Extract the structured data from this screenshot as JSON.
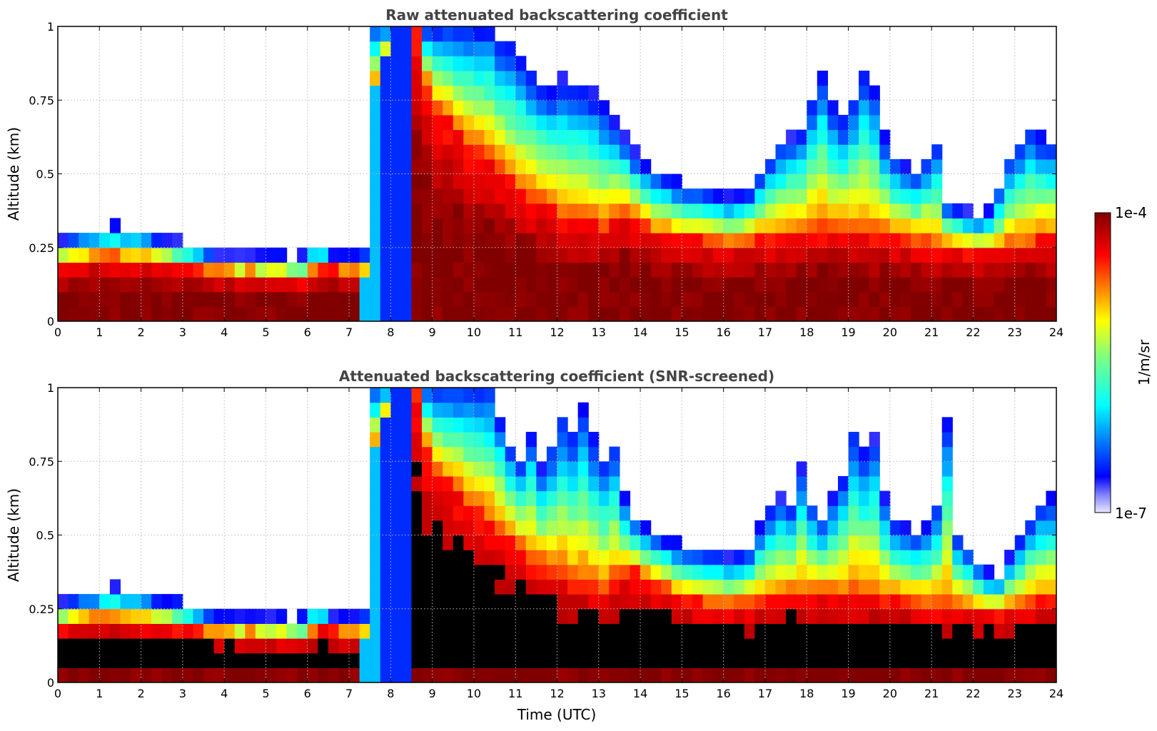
{
  "chart_data": {
    "type": "heatmap",
    "colormap": "jet",
    "colorbar": {
      "label": "1/m/sr",
      "min_label": "1e-7",
      "max_label": "1e-4",
      "vmin": 1e-07,
      "vmax": 0.0001,
      "scale": "log",
      "placement": "right"
    },
    "grid": true,
    "panels": [
      {
        "title": "Raw attenuated backscattering coefficient",
        "xlabel": "",
        "ylabel": "Altitude (km)",
        "xlim": [
          0,
          24
        ],
        "ylim": [
          0,
          1
        ],
        "xticks": [
          "0",
          "1",
          "2",
          "3",
          "4",
          "5",
          "6",
          "7",
          "8",
          "9",
          "10",
          "11",
          "12",
          "13",
          "14",
          "15",
          "16",
          "17",
          "18",
          "19",
          "20",
          "21",
          "22",
          "23",
          "24"
        ],
        "yticks": [
          "0",
          "0.25",
          "0.5",
          "0.75",
          "1"
        ],
        "x_step_hours": 0.25,
        "y_step_km": 0.05,
        "boundary_layer_top_km": [
          0.27,
          0.28,
          0.29,
          0.29,
          0.3,
          0.31,
          0.3,
          0.3,
          0.29,
          0.28,
          0.27,
          0.26,
          0.25,
          0.24,
          0.23,
          0.22,
          0.21,
          0.21,
          0.22,
          0.21,
          0.21,
          0.21,
          0.2,
          0.21,
          0.25,
          0.24,
          0.22,
          0.22,
          0.22,
          0.23,
          1.0,
          1.0,
          1.0,
          1.0,
          1.0,
          1.0,
          1.0,
          1.0,
          1.0,
          1.0,
          1.0,
          1.0,
          0.95,
          0.92,
          0.88,
          0.84,
          0.8,
          0.78,
          0.82,
          0.8,
          0.78,
          0.76,
          0.72,
          0.68,
          0.62,
          0.56,
          0.52,
          0.5,
          0.48,
          0.46,
          0.45,
          0.44,
          0.44,
          0.43,
          0.42,
          0.42,
          0.44,
          0.5,
          0.55,
          0.6,
          0.62,
          0.65,
          0.75,
          0.85,
          0.72,
          0.68,
          0.75,
          0.85,
          0.78,
          0.62,
          0.55,
          0.52,
          0.5,
          0.55,
          0.6,
          0.4,
          0.38,
          0.36,
          0.35,
          0.36,
          0.45,
          0.55,
          0.6,
          0.65,
          0.62,
          0.6
        ],
        "core_top_km": [
          0.2,
          0.21,
          0.21,
          0.22,
          0.22,
          0.22,
          0.21,
          0.21,
          0.21,
          0.2,
          0.2,
          0.19,
          0.19,
          0.18,
          0.17,
          0.17,
          0.17,
          0.16,
          0.17,
          0.16,
          0.16,
          0.16,
          0.16,
          0.15,
          0.17,
          0.19,
          0.18,
          0.17,
          0.17,
          0.16,
          0.8,
          0.9,
          1.0,
          1.0,
          1.0,
          0.8,
          0.72,
          0.68,
          0.65,
          0.6,
          0.58,
          0.55,
          0.52,
          0.48,
          0.45,
          0.42,
          0.4,
          0.38,
          0.36,
          0.34,
          0.34,
          0.33,
          0.32,
          0.35,
          0.37,
          0.35,
          0.33,
          0.3,
          0.3,
          0.29,
          0.28,
          0.28,
          0.27,
          0.27,
          0.26,
          0.27,
          0.27,
          0.28,
          0.28,
          0.29,
          0.3,
          0.3,
          0.3,
          0.31,
          0.3,
          0.3,
          0.3,
          0.3,
          0.29,
          0.29,
          0.28,
          0.28,
          0.27,
          0.27,
          0.26,
          0.25,
          0.25,
          0.25,
          0.24,
          0.24,
          0.24,
          0.25,
          0.26,
          0.27,
          0.28,
          0.28
        ]
      },
      {
        "title": "Attenuated backscattering coefficient (SNR-screened)",
        "xlabel": "Time (UTC)",
        "ylabel": "Altitude (km)",
        "xlim": [
          0,
          24
        ],
        "ylim": [
          0,
          1
        ],
        "xticks": [
          "0",
          "1",
          "2",
          "3",
          "4",
          "5",
          "6",
          "7",
          "8",
          "9",
          "10",
          "11",
          "12",
          "13",
          "14",
          "15",
          "16",
          "17",
          "18",
          "19",
          "20",
          "21",
          "22",
          "23",
          "24"
        ],
        "yticks": [
          "0",
          "0.25",
          "0.5",
          "0.75",
          "1"
        ],
        "x_step_hours": 0.25,
        "y_step_km": 0.05,
        "boundary_layer_top_km": [
          0.27,
          0.28,
          0.29,
          0.29,
          0.3,
          0.31,
          0.3,
          0.3,
          0.29,
          0.28,
          0.27,
          0.26,
          0.25,
          0.24,
          0.23,
          0.22,
          0.21,
          0.21,
          0.22,
          0.21,
          0.21,
          0.21,
          0.2,
          0.21,
          0.25,
          0.24,
          0.22,
          0.22,
          0.22,
          0.23,
          1.0,
          1.0,
          1.0,
          1.0,
          1.0,
          1.0,
          1.0,
          1.0,
          1.0,
          1.0,
          1.0,
          1.0,
          0.9,
          0.8,
          0.75,
          0.85,
          0.72,
          0.8,
          0.9,
          0.85,
          0.92,
          0.82,
          0.75,
          0.8,
          0.62,
          0.55,
          0.52,
          0.5,
          0.48,
          0.46,
          0.45,
          0.44,
          0.44,
          0.43,
          0.42,
          0.42,
          0.44,
          0.52,
          0.58,
          0.62,
          0.6,
          0.72,
          0.6,
          0.55,
          0.62,
          0.7,
          0.85,
          0.78,
          0.82,
          0.62,
          0.55,
          0.52,
          0.5,
          0.52,
          0.6,
          0.9,
          0.5,
          0.45,
          0.4,
          0.36,
          0.35,
          0.42,
          0.48,
          0.55,
          0.6,
          0.62
        ],
        "core_top_km": [
          0.2,
          0.21,
          0.21,
          0.22,
          0.22,
          0.22,
          0.21,
          0.21,
          0.21,
          0.2,
          0.2,
          0.19,
          0.19,
          0.18,
          0.17,
          0.17,
          0.17,
          0.16,
          0.17,
          0.16,
          0.16,
          0.16,
          0.16,
          0.15,
          0.17,
          0.19,
          0.18,
          0.17,
          0.17,
          0.16,
          0.8,
          0.9,
          1.0,
          1.0,
          1.0,
          0.8,
          0.72,
          0.68,
          0.65,
          0.6,
          0.58,
          0.55,
          0.52,
          0.48,
          0.45,
          0.42,
          0.4,
          0.38,
          0.36,
          0.34,
          0.34,
          0.33,
          0.32,
          0.35,
          0.37,
          0.38,
          0.36,
          0.34,
          0.32,
          0.3,
          0.28,
          0.28,
          0.27,
          0.27,
          0.26,
          0.27,
          0.27,
          0.28,
          0.28,
          0.29,
          0.3,
          0.3,
          0.3,
          0.31,
          0.3,
          0.3,
          0.3,
          0.3,
          0.29,
          0.29,
          0.28,
          0.28,
          0.27,
          0.27,
          0.26,
          0.25,
          0.25,
          0.25,
          0.24,
          0.24,
          0.24,
          0.25,
          0.26,
          0.27,
          0.28,
          0.28
        ],
        "saturated_mask_color": "#000000"
      }
    ]
  },
  "colors": {
    "title": "#444444",
    "grid": "#bbbbbb",
    "background": "#ffffff",
    "saturated": "#000000"
  }
}
